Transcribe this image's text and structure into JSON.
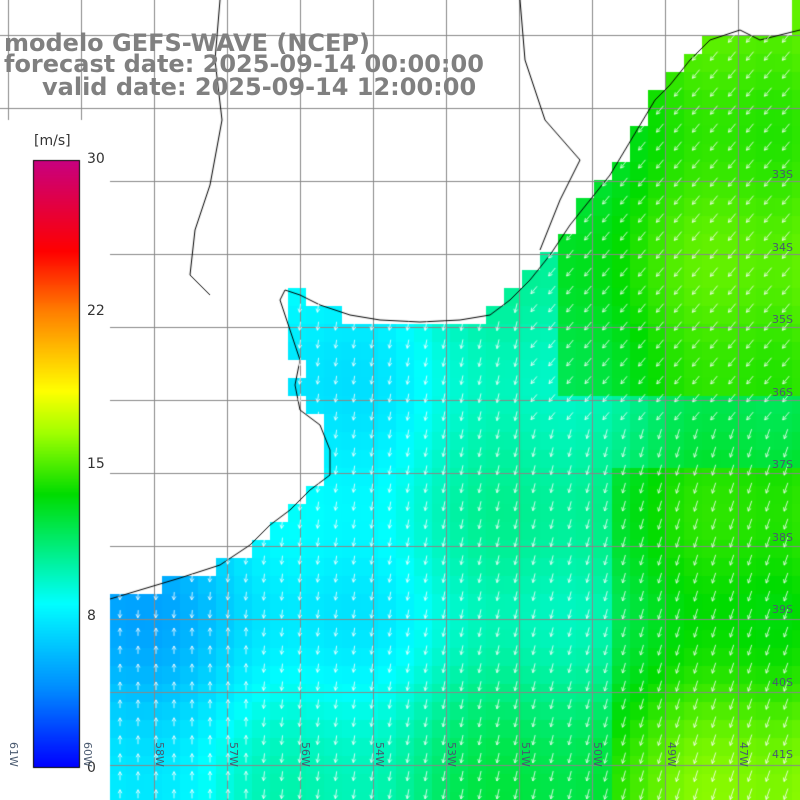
{
  "title": {
    "line1": "modelo GEFS-WAVE (NCEP)",
    "line2": "forecast date: 2025-09-14 00:00:00",
    "line3": "valid date: 2025-09-14 12:00:00"
  },
  "colorbar": {
    "units": "[m/s]",
    "ticks": [
      "30",
      "22",
      "15",
      "8",
      "0"
    ],
    "min": 0,
    "max": 30,
    "colors": [
      "#0000ff",
      "#00a0ff",
      "#00ffff",
      "#00ff00",
      "#ffff00",
      "#ff8000",
      "#ff0000",
      "#c00080"
    ]
  },
  "map": {
    "ocean_low_color": "#1060ff",
    "ocean_high_color": "#60ff20",
    "grid_color": "#888888",
    "coast_color": "#000000",
    "arrow_color": "#ffffff",
    "lon_labels": [
      "61W",
      "60W",
      "58W",
      "57W",
      "56W",
      "54W",
      "53W",
      "51W",
      "50W",
      "49W",
      "47W"
    ],
    "lat_labels": [
      "33S",
      "34S",
      "35S",
      "36S",
      "37S",
      "38S",
      "39S",
      "40S",
      "41S"
    ]
  }
}
